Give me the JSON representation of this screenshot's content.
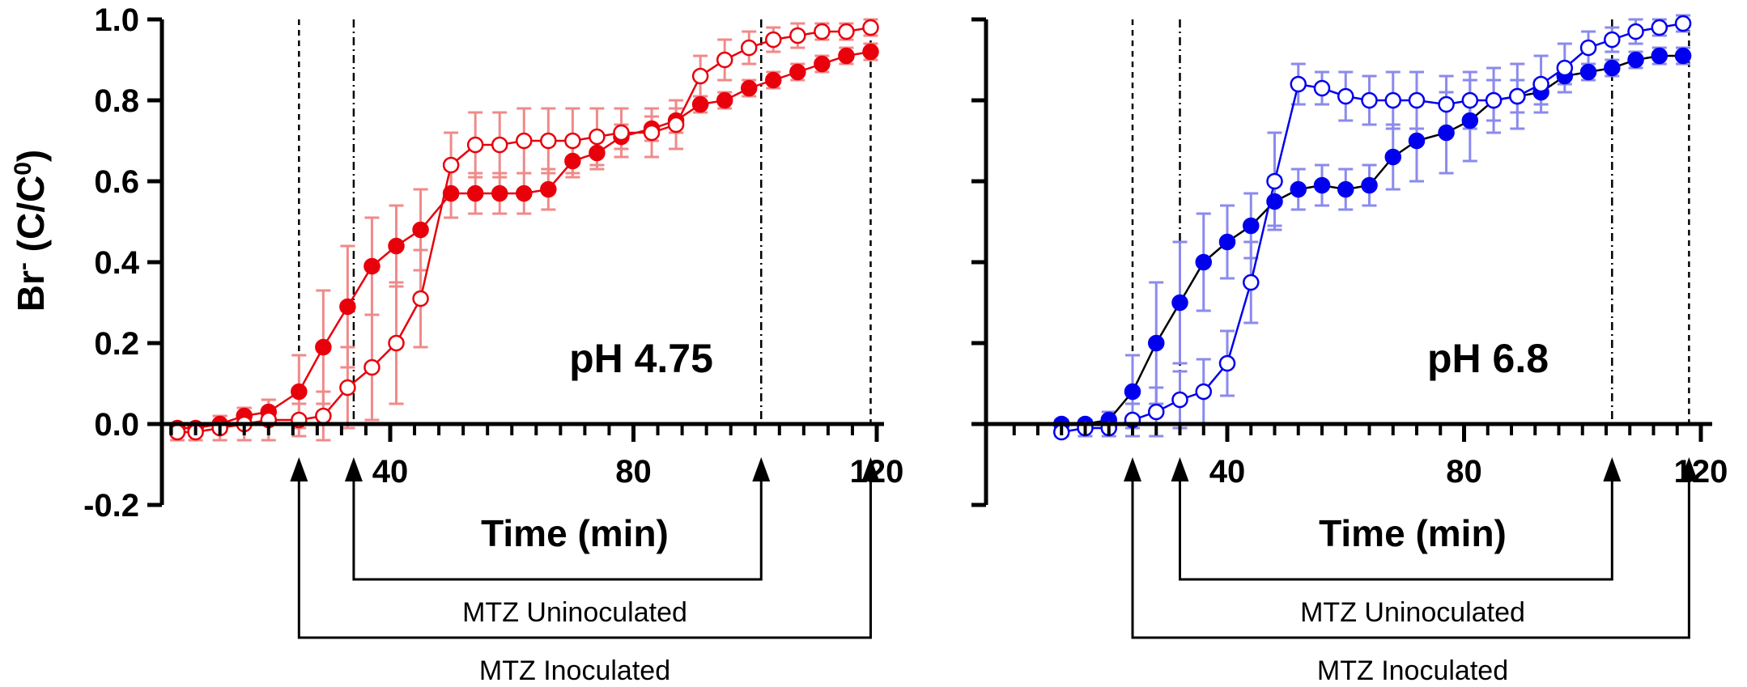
{
  "chart_data": [
    {
      "type": "line",
      "panel_label": "pH 4.75",
      "xlabel": "Time (min)",
      "ylabel_main": "Br",
      "ylabel_sup": "-",
      "ylabel_rest": " (C/C",
      "ylabel_sup2": "0",
      "ylabel_close": ")",
      "xlim": [
        0,
        120
      ],
      "ylim": [
        -0.2,
        1.0
      ],
      "xticks_labeled": [
        "40",
        "80",
        "120"
      ],
      "xtick_values": [
        40,
        80,
        120
      ],
      "yticks": [
        "-0.2",
        "0.0",
        "0.2",
        "0.4",
        "0.6",
        "0.8",
        "1.0"
      ],
      "ytick_values": [
        -0.2,
        0.0,
        0.2,
        0.4,
        0.6,
        0.8,
        1.0
      ],
      "colors": {
        "line": "#e8000b",
        "error": "#f08a8a",
        "marker": "#e8000b"
      },
      "vlines": [
        {
          "x": 25,
          "style": "dashed"
        },
        {
          "x": 34,
          "style": "dashdot"
        },
        {
          "x": 101,
          "style": "dashdot"
        },
        {
          "x": 119,
          "style": "dashed"
        }
      ],
      "windows": [
        {
          "name": "MTZ Uninoculated",
          "start": 34,
          "end": 101
        },
        {
          "name": "MTZ Inoculated",
          "start": 25,
          "end": 119
        }
      ],
      "series": [
        {
          "name": "MTZ Inoculated (filled)",
          "marker": "filled",
          "x": [
            5,
            8,
            12,
            16,
            20,
            25,
            29,
            33,
            37,
            41,
            45,
            50,
            54,
            58,
            62,
            66,
            70,
            74,
            78,
            83,
            87,
            91,
            95,
            99,
            103,
            107,
            111,
            115,
            119
          ],
          "y": [
            -0.01,
            -0.01,
            0.0,
            0.02,
            0.03,
            0.08,
            0.19,
            0.29,
            0.39,
            0.44,
            0.48,
            0.57,
            0.57,
            0.57,
            0.57,
            0.58,
            0.65,
            0.67,
            0.71,
            0.73,
            0.75,
            0.79,
            0.8,
            0.83,
            0.85,
            0.87,
            0.89,
            0.91,
            0.92
          ],
          "err": [
            0.01,
            0.01,
            0.02,
            0.02,
            0.03,
            0.09,
            0.14,
            0.15,
            0.12,
            0.1,
            0.1,
            0.06,
            0.05,
            0.05,
            0.05,
            0.05,
            0.04,
            0.04,
            0.03,
            0.03,
            0.03,
            0.02,
            0.02,
            0.02,
            0.02,
            0.02,
            0.02,
            0.02,
            0.02
          ]
        },
        {
          "name": "MTZ Uninoculated (open)",
          "marker": "open",
          "x": [
            5,
            8,
            12,
            16,
            20,
            25,
            29,
            33,
            37,
            41,
            45,
            50,
            54,
            58,
            62,
            66,
            70,
            74,
            78,
            83,
            87,
            91,
            95,
            99,
            103,
            107,
            111,
            115,
            119
          ],
          "y": [
            -0.02,
            -0.02,
            -0.01,
            0.0,
            0.01,
            0.01,
            0.02,
            0.09,
            0.14,
            0.2,
            0.31,
            0.64,
            0.69,
            0.69,
            0.7,
            0.7,
            0.7,
            0.71,
            0.72,
            0.72,
            0.74,
            0.86,
            0.9,
            0.93,
            0.95,
            0.96,
            0.97,
            0.97,
            0.98
          ],
          "err": [
            0.02,
            0.02,
            0.03,
            0.04,
            0.05,
            0.04,
            0.06,
            0.1,
            0.13,
            0.15,
            0.12,
            0.08,
            0.08,
            0.08,
            0.08,
            0.08,
            0.08,
            0.07,
            0.06,
            0.06,
            0.06,
            0.05,
            0.05,
            0.04,
            0.03,
            0.03,
            0.02,
            0.02,
            0.02
          ]
        }
      ]
    },
    {
      "type": "line",
      "panel_label": "pH 6.8",
      "xlabel": "Time (min)",
      "xlim": [
        0,
        120
      ],
      "ylim": [
        -0.2,
        1.0
      ],
      "xticks_labeled": [
        "40",
        "80",
        "120"
      ],
      "xtick_values": [
        40,
        80,
        120
      ],
      "colors": {
        "line": "#000000",
        "line_open": "#0000ee",
        "error": "#8a8aee",
        "marker": "#0000ee"
      },
      "vlines": [
        {
          "x": 24,
          "style": "dashed"
        },
        {
          "x": 32,
          "style": "dashdot"
        },
        {
          "x": 105,
          "style": "dashdot"
        },
        {
          "x": 118,
          "style": "dashed"
        }
      ],
      "windows": [
        {
          "name": "MTZ Uninoculated",
          "start": 32,
          "end": 105
        },
        {
          "name": "MTZ Inoculated",
          "start": 24,
          "end": 118
        }
      ],
      "series": [
        {
          "name": "MTZ Inoculated (filled)",
          "marker": "filled",
          "x": [
            12,
            16,
            20,
            24,
            28,
            32,
            36,
            40,
            44,
            48,
            52,
            56,
            60,
            64,
            68,
            72,
            77,
            81,
            85,
            89,
            93,
            97,
            101,
            105,
            109,
            113,
            117
          ],
          "y": [
            0.0,
            0.0,
            0.01,
            0.08,
            0.2,
            0.3,
            0.4,
            0.45,
            0.49,
            0.55,
            0.58,
            0.59,
            0.58,
            0.59,
            0.66,
            0.7,
            0.72,
            0.75,
            0.8,
            0.81,
            0.82,
            0.86,
            0.87,
            0.88,
            0.9,
            0.91,
            0.91
          ],
          "err": [
            0.01,
            0.01,
            0.02,
            0.09,
            0.15,
            0.15,
            0.12,
            0.09,
            0.08,
            0.06,
            0.05,
            0.05,
            0.05,
            0.05,
            0.08,
            0.1,
            0.1,
            0.1,
            0.05,
            0.04,
            0.03,
            0.02,
            0.02,
            0.02,
            0.02,
            0.02,
            0.02
          ]
        },
        {
          "name": "MTZ Uninoculated (open)",
          "marker": "open",
          "x": [
            12,
            16,
            20,
            24,
            28,
            32,
            36,
            40,
            44,
            48,
            52,
            56,
            60,
            64,
            68,
            72,
            77,
            81,
            85,
            89,
            93,
            97,
            101,
            105,
            109,
            113,
            117
          ],
          "y": [
            -0.02,
            -0.01,
            -0.01,
            0.01,
            0.03,
            0.06,
            0.08,
            0.15,
            0.35,
            0.6,
            0.84,
            0.83,
            0.81,
            0.8,
            0.8,
            0.8,
            0.79,
            0.8,
            0.8,
            0.81,
            0.84,
            0.88,
            0.93,
            0.95,
            0.97,
            0.98,
            0.99
          ],
          "err": [
            0.01,
            0.02,
            0.02,
            0.04,
            0.06,
            0.07,
            0.08,
            0.08,
            0.1,
            0.12,
            0.05,
            0.04,
            0.06,
            0.06,
            0.07,
            0.07,
            0.07,
            0.07,
            0.08,
            0.08,
            0.07,
            0.06,
            0.04,
            0.03,
            0.03,
            0.02,
            0.02
          ]
        }
      ]
    }
  ]
}
